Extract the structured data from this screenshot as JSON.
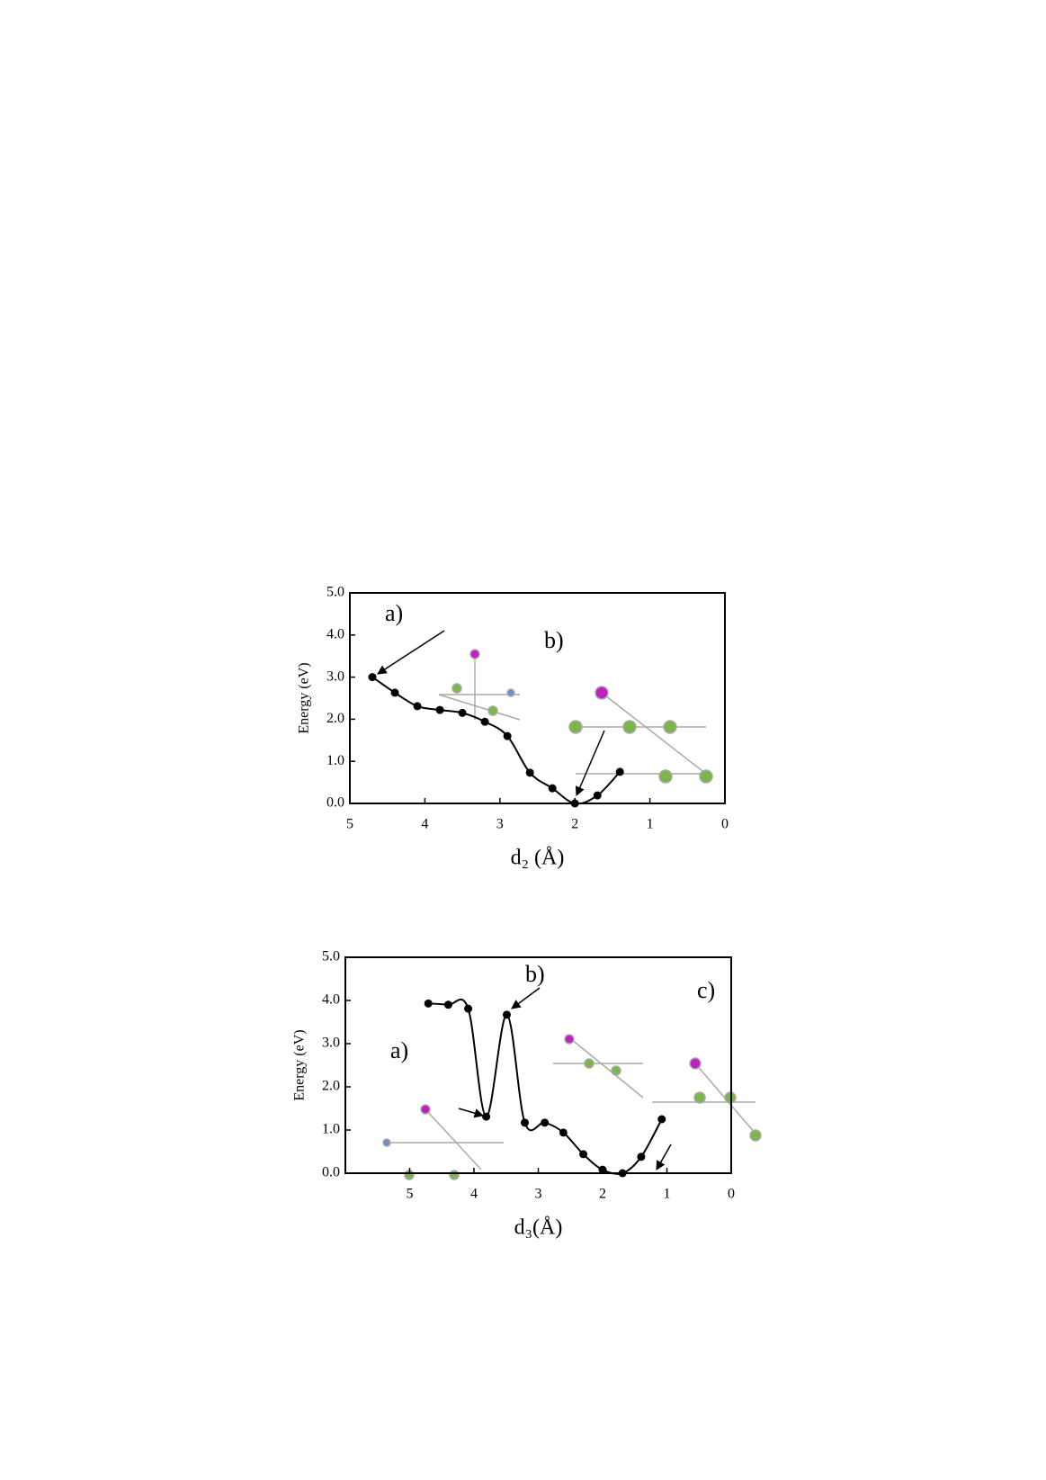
{
  "chart_data": [
    {
      "type": "line",
      "ylabel": "Energy (eV)",
      "xlabel": "d₂ (Å)",
      "color": "#000000",
      "x": [
        4.7,
        4.4,
        4.1,
        3.8,
        3.5,
        3.2,
        2.9,
        2.6,
        2.3,
        2.0,
        1.7,
        1.4
      ],
      "values": [
        3.0,
        2.63,
        2.31,
        2.22,
        2.15,
        1.94,
        1.6,
        0.73,
        0.36,
        0.0,
        0.19,
        0.75
      ],
      "xlim": [
        5,
        0
      ],
      "xticks": [
        5,
        4,
        3,
        2,
        1,
        0
      ],
      "ylim": [
        0,
        5
      ],
      "yticks": [
        {
          "value": 0,
          "label": "0.0"
        },
        {
          "value": 1,
          "label": "1.0"
        },
        {
          "value": 2,
          "label": "2.0"
        },
        {
          "value": 3,
          "label": "3.0"
        },
        {
          "value": 4,
          "label": "4.0"
        },
        {
          "value": 5,
          "label": "5.0"
        }
      ],
      "annotations": [
        "a)",
        "b)"
      ]
    },
    {
      "type": "line",
      "ylabel": "Energy (eV)",
      "xlabel": "d₃(Å)",
      "color": "#000000",
      "x": [
        4.71,
        4.4,
        4.09,
        3.81,
        3.49,
        3.21,
        2.9,
        2.61,
        2.3,
        2.0,
        1.69,
        1.4,
        1.08
      ],
      "values": [
        3.93,
        3.9,
        3.81,
        1.31,
        3.67,
        1.17,
        1.17,
        0.94,
        0.44,
        0.08,
        0.0,
        0.38,
        1.25
      ],
      "xlim": [
        6,
        0
      ],
      "xticks": [
        5,
        4,
        3,
        2,
        1,
        0
      ],
      "ylim": [
        0,
        5
      ],
      "yticks": [
        {
          "value": 0,
          "label": "0.0"
        },
        {
          "value": 1,
          "label": "1.0"
        },
        {
          "value": 2,
          "label": "2.0"
        },
        {
          "value": 3,
          "label": "3.0"
        },
        {
          "value": 4,
          "label": "4.0"
        },
        {
          "value": 5,
          "label": "5.0"
        }
      ],
      "annotations": [
        "a)",
        "b)",
        "c)"
      ]
    }
  ]
}
